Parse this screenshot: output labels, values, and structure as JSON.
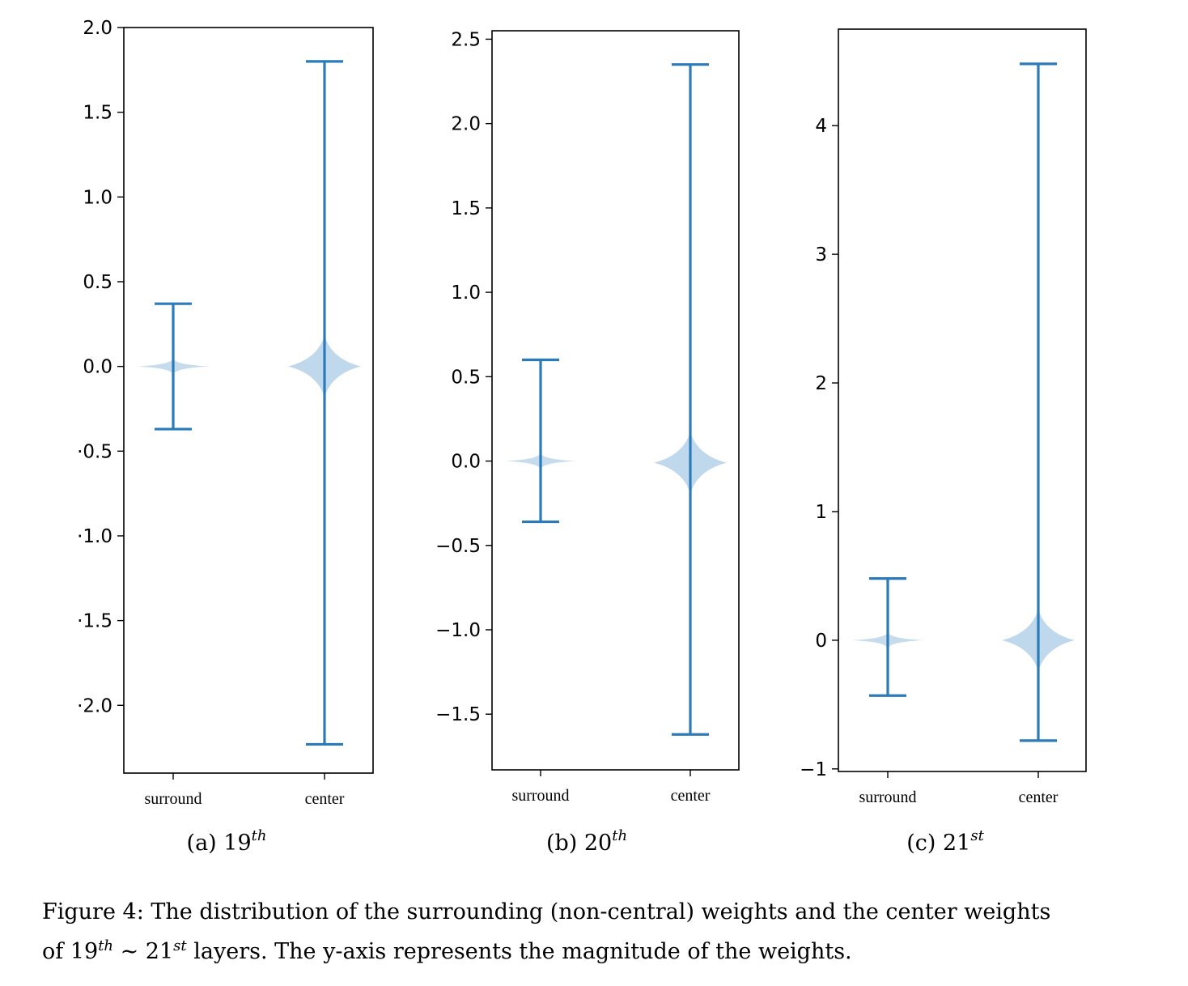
{
  "chart_data": [
    {
      "type": "violin",
      "subcaption": {
        "label": "(a)",
        "number": "19",
        "superscript": "th"
      },
      "categories": [
        "surround",
        "center"
      ],
      "ylim": [
        -2.4,
        2.0
      ],
      "yticks": [
        2.0,
        1.5,
        1.0,
        0.5,
        0.0,
        -0.5,
        -1.0,
        -1.5,
        -2.0
      ],
      "ytick_labels": [
        "2.0",
        "1.5",
        "1.0",
        "0.5",
        "0.0",
        "·0.5",
        "·1.0",
        "·1.5",
        "·2.0"
      ],
      "series": [
        {
          "category": "surround",
          "min": -0.37,
          "max": 0.37,
          "center": 0.0
        },
        {
          "category": "center",
          "min": -2.23,
          "max": 1.8,
          "center": 0.0
        }
      ]
    },
    {
      "type": "violin",
      "subcaption": {
        "label": "(b)",
        "number": "20",
        "superscript": "th"
      },
      "categories": [
        "surround",
        "center"
      ],
      "ylim": [
        -1.83,
        2.55
      ],
      "yticks": [
        2.5,
        2.0,
        1.5,
        1.0,
        0.5,
        0.0,
        -0.5,
        -1.0,
        -1.5
      ],
      "ytick_labels": [
        "2.5",
        "2.0",
        "1.5",
        "1.0",
        "0.5",
        "0.0",
        "−0.5",
        "−1.0",
        "−1.5"
      ],
      "series": [
        {
          "category": "surround",
          "min": -0.36,
          "max": 0.6,
          "center": 0.0
        },
        {
          "category": "center",
          "min": -1.62,
          "max": 2.35,
          "center": -0.01
        }
      ]
    },
    {
      "type": "violin",
      "subcaption": {
        "label": "(c)",
        "number": "21",
        "superscript": "st"
      },
      "categories": [
        "surround",
        "center"
      ],
      "ylim": [
        -1.02,
        4.75
      ],
      "yticks": [
        4,
        3,
        2,
        1,
        0,
        -1
      ],
      "ytick_labels": [
        "4",
        "3",
        "2",
        "1",
        "0",
        "−1"
      ],
      "series": [
        {
          "category": "surround",
          "min": -0.43,
          "max": 0.48,
          "center": 0.0
        },
        {
          "category": "center",
          "min": -0.78,
          "max": 4.48,
          "center": 0.0
        }
      ]
    }
  ],
  "caption": {
    "line1": "Figure 4: The distribution of the surrounding (non-central) weights and the center weights",
    "line2_a": "of 19",
    "line2_sup1": "th",
    "line2_b": " ∼ 21",
    "line2_sup2": "st",
    "line2_c": " layers. The y-axis represents the magnitude of the weights."
  },
  "colors": {
    "line": "#2b7bba",
    "violin_fill": "#bcd6ea",
    "axis": "#000000"
  }
}
